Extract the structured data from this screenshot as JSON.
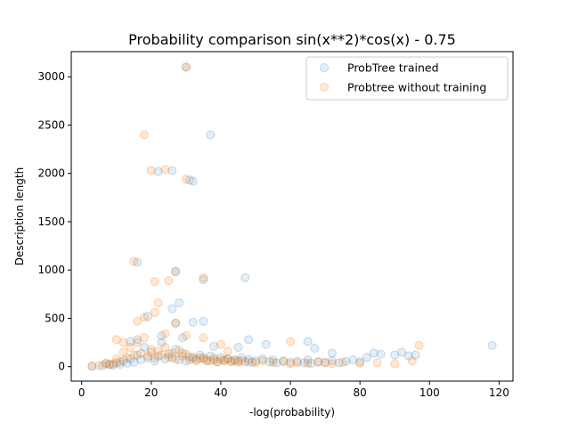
{
  "chart_data": {
    "type": "scatter",
    "title": "Probability comparison sin(x**2)*cos(x) - 0.75",
    "xlabel": "-log(probability)",
    "ylabel": "Description length",
    "xlim": [
      -3,
      124
    ],
    "ylim": [
      -150,
      3260
    ],
    "xticks": [
      0,
      20,
      40,
      60,
      80,
      100,
      120
    ],
    "yticks": [
      0,
      500,
      1000,
      1500,
      2000,
      2500,
      3000
    ],
    "grid": false,
    "legend_position": "top-right",
    "series": [
      {
        "name": "ProbTree trained",
        "color": "#1f77b4",
        "points": [
          [
            3,
            5
          ],
          [
            6,
            10
          ],
          [
            7,
            30
          ],
          [
            8,
            20
          ],
          [
            9,
            15
          ],
          [
            10,
            40
          ],
          [
            11,
            25
          ],
          [
            12,
            60
          ],
          [
            13,
            35
          ],
          [
            14,
            80
          ],
          [
            15,
            45
          ],
          [
            16,
            120
          ],
          [
            17,
            70
          ],
          [
            18,
            200
          ],
          [
            19,
            90
          ],
          [
            20,
            150
          ],
          [
            21,
            60
          ],
          [
            22,
            110
          ],
          [
            23,
            250
          ],
          [
            24,
            80
          ],
          [
            25,
            130
          ],
          [
            26,
            95
          ],
          [
            27,
            180
          ],
          [
            28,
            70
          ],
          [
            29,
            140
          ],
          [
            30,
            60
          ],
          [
            31,
            100
          ],
          [
            32,
            85
          ],
          [
            33,
            75
          ],
          [
            34,
            120
          ],
          [
            35,
            90
          ],
          [
            36,
            60
          ],
          [
            37,
            110
          ],
          [
            38,
            70
          ],
          [
            39,
            50
          ],
          [
            40,
            95
          ],
          [
            41,
            65
          ],
          [
            42,
            80
          ],
          [
            43,
            55
          ],
          [
            44,
            70
          ],
          [
            45,
            60
          ],
          [
            46,
            90
          ],
          [
            47,
            50
          ],
          [
            48,
            75
          ],
          [
            49,
            45
          ],
          [
            50,
            60
          ],
          [
            52,
            80
          ],
          [
            54,
            50
          ],
          [
            55,
            70
          ],
          [
            56,
            40
          ],
          [
            58,
            60
          ],
          [
            60,
            45
          ],
          [
            62,
            55
          ],
          [
            64,
            40
          ],
          [
            65,
            70
          ],
          [
            66,
            35
          ],
          [
            68,
            50
          ],
          [
            70,
            45
          ],
          [
            72,
            60
          ],
          [
            74,
            40
          ],
          [
            76,
            55
          ],
          [
            78,
            70
          ],
          [
            80,
            50
          ],
          [
            82,
            95
          ],
          [
            84,
            140
          ],
          [
            86,
            130
          ],
          [
            90,
            120
          ],
          [
            92,
            150
          ],
          [
            94,
            110
          ],
          [
            96,
            120
          ],
          [
            118,
            220
          ],
          [
            14,
            260
          ],
          [
            16,
            280
          ],
          [
            19,
            520
          ],
          [
            23,
            320
          ],
          [
            27,
            450
          ],
          [
            29,
            300
          ],
          [
            32,
            460
          ],
          [
            35,
            470
          ],
          [
            38,
            210
          ],
          [
            45,
            200
          ],
          [
            48,
            280
          ],
          [
            53,
            230
          ],
          [
            65,
            260
          ],
          [
            67,
            190
          ],
          [
            72,
            140
          ],
          [
            26,
            600
          ],
          [
            28,
            660
          ],
          [
            22,
            2020
          ],
          [
            26,
            2030
          ],
          [
            31,
            1930
          ],
          [
            32,
            1920
          ],
          [
            37,
            2400
          ],
          [
            16,
            1080
          ],
          [
            35,
            900
          ],
          [
            47,
            920
          ],
          [
            30,
            3100
          ],
          [
            27,
            980
          ]
        ]
      },
      {
        "name": "Probtree without training",
        "color": "#ff7f0e",
        "points": [
          [
            3,
            5
          ],
          [
            5,
            10
          ],
          [
            7,
            40
          ],
          [
            8,
            25
          ],
          [
            9,
            30
          ],
          [
            10,
            80
          ],
          [
            11,
            50
          ],
          [
            12,
            150
          ],
          [
            13,
            90
          ],
          [
            14,
            200
          ],
          [
            15,
            120
          ],
          [
            16,
            250
          ],
          [
            17,
            140
          ],
          [
            18,
            300
          ],
          [
            19,
            110
          ],
          [
            20,
            180
          ],
          [
            21,
            90
          ],
          [
            22,
            160
          ],
          [
            23,
            120
          ],
          [
            24,
            200
          ],
          [
            25,
            100
          ],
          [
            26,
            140
          ],
          [
            27,
            80
          ],
          [
            28,
            170
          ],
          [
            29,
            110
          ],
          [
            30,
            130
          ],
          [
            31,
            70
          ],
          [
            32,
            100
          ],
          [
            33,
            60
          ],
          [
            34,
            90
          ],
          [
            35,
            80
          ],
          [
            36,
            70
          ],
          [
            37,
            60
          ],
          [
            38,
            90
          ],
          [
            39,
            50
          ],
          [
            40,
            70
          ],
          [
            41,
            60
          ],
          [
            42,
            80
          ],
          [
            43,
            50
          ],
          [
            44,
            65
          ],
          [
            45,
            45
          ],
          [
            46,
            60
          ],
          [
            48,
            50
          ],
          [
            50,
            40
          ],
          [
            52,
            60
          ],
          [
            55,
            45
          ],
          [
            58,
            50
          ],
          [
            60,
            30
          ],
          [
            62,
            40
          ],
          [
            65,
            35
          ],
          [
            68,
            50
          ],
          [
            70,
            40
          ],
          [
            72,
            30
          ],
          [
            75,
            45
          ],
          [
            80,
            35
          ],
          [
            85,
            40
          ],
          [
            90,
            30
          ],
          [
            95,
            60
          ],
          [
            97,
            220
          ],
          [
            10,
            280
          ],
          [
            12,
            250
          ],
          [
            16,
            470
          ],
          [
            18,
            510
          ],
          [
            21,
            560
          ],
          [
            22,
            660
          ],
          [
            24,
            340
          ],
          [
            27,
            450
          ],
          [
            30,
            320
          ],
          [
            35,
            300
          ],
          [
            40,
            230
          ],
          [
            42,
            160
          ],
          [
            60,
            260
          ],
          [
            18,
            2400
          ],
          [
            20,
            2030
          ],
          [
            24,
            2040
          ],
          [
            30,
            1940
          ],
          [
            15,
            1090
          ],
          [
            27,
            990
          ],
          [
            21,
            880
          ],
          [
            35,
            920
          ],
          [
            25,
            890
          ],
          [
            30,
            3100
          ]
        ]
      }
    ]
  }
}
